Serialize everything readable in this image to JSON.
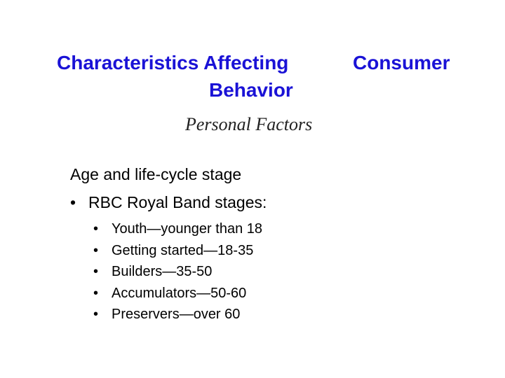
{
  "slide": {
    "title": {
      "part1": "Characteristics Affecting",
      "part2": "Consumer",
      "part3": "Behavior"
    },
    "subtitle": "Personal Factors",
    "heading": "Age and life-cycle stage",
    "bullet_glyph": "•",
    "level1": "RBC Royal Band stages:",
    "stages": [
      "Youth—younger than 18",
      "Getting started—18-35",
      "Builders—35-50",
      "Accumulators—50-60",
      "Preservers—over 60"
    ],
    "colors": {
      "title": "#1a12d6",
      "body": "#000000"
    }
  }
}
